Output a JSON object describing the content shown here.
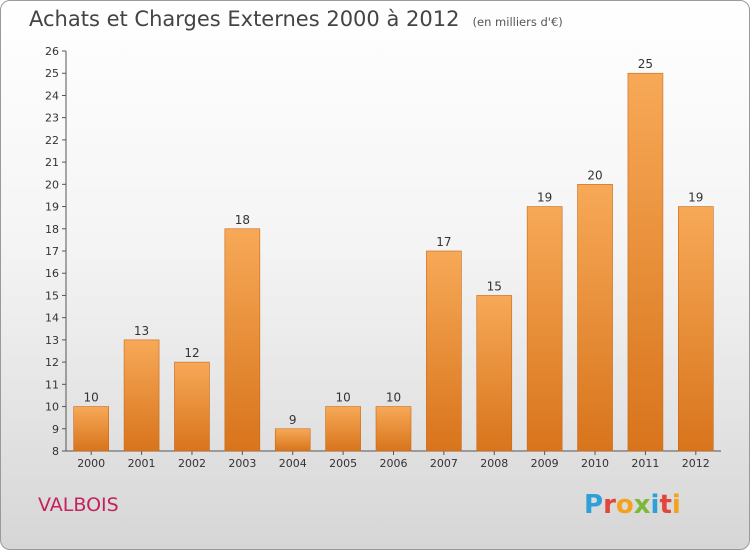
{
  "chart_data": {
    "type": "bar",
    "title": "Achats et Charges Externes 2000 à 2012",
    "subtitle": "(en milliers d'€)",
    "categories": [
      "2000",
      "2001",
      "2002",
      "2003",
      "2004",
      "2005",
      "2006",
      "2007",
      "2008",
      "2009",
      "2010",
      "2011",
      "2012"
    ],
    "values": [
      10,
      13,
      12,
      18,
      9,
      10,
      10,
      17,
      15,
      19,
      20,
      25,
      19
    ],
    "ylim": [
      8,
      26
    ],
    "yticks": [
      8,
      9,
      10,
      11,
      12,
      13,
      14,
      15,
      16,
      17,
      18,
      19,
      20,
      21,
      22,
      23,
      24,
      25,
      26
    ],
    "grid": false,
    "colors": {
      "bar_light": "#f7a957",
      "bar_dark": "#d8741c",
      "axis": "#555555",
      "label": "#333333"
    }
  },
  "footer": {
    "town": "VALBOIS"
  },
  "logo": {
    "text": "Proxiti",
    "colors": [
      "#2f9fd8",
      "#e2463a",
      "#f5a21b",
      "#7cb83a",
      "#2f9fd8",
      "#e2463a",
      "#f5a21b"
    ]
  }
}
